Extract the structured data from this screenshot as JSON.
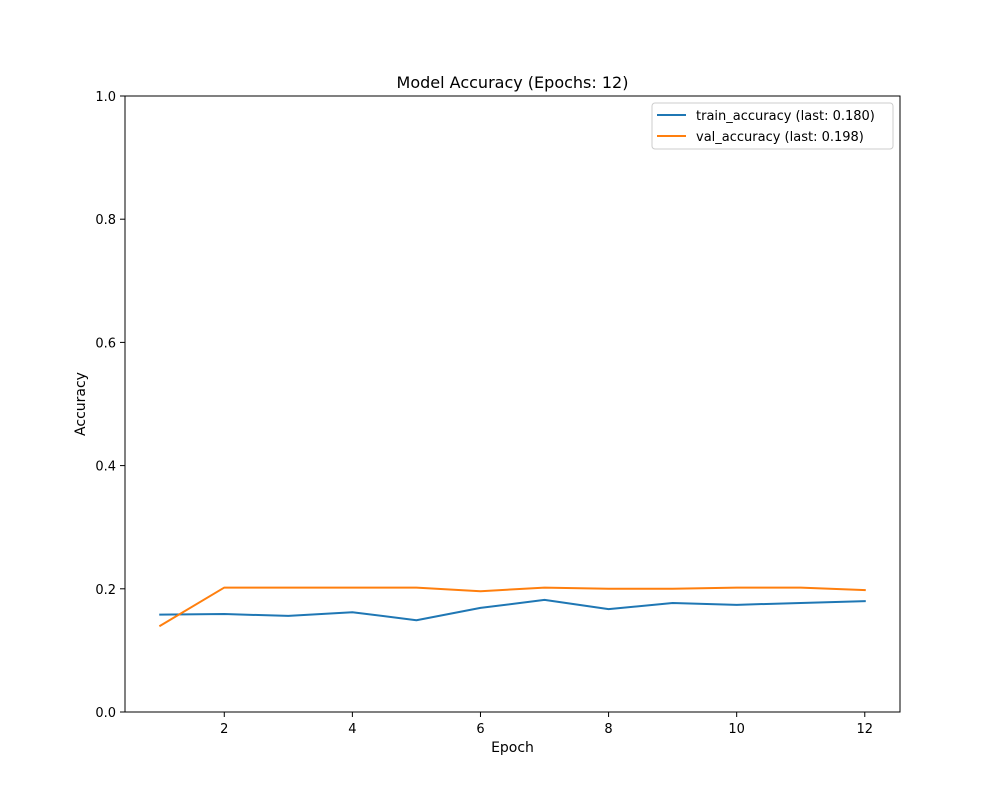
{
  "chart_data": {
    "type": "line",
    "title": "Model Accuracy (Epochs: 12)",
    "xlabel": "Epoch",
    "ylabel": "Accuracy",
    "xlim": [
      0.45,
      12.55
    ],
    "ylim": [
      0.0,
      1.0
    ],
    "xticks": [
      2,
      4,
      6,
      8,
      10,
      12
    ],
    "yticks": [
      0.0,
      0.2,
      0.4,
      0.6,
      0.8,
      1.0
    ],
    "xtick_labels": [
      "2",
      "4",
      "6",
      "8",
      "10",
      "12"
    ],
    "ytick_labels": [
      "0.0",
      "0.2",
      "0.4",
      "0.6",
      "0.8",
      "1.0"
    ],
    "grid": false,
    "legend_position": "top-right",
    "x": [
      1,
      2,
      3,
      4,
      5,
      6,
      7,
      8,
      9,
      10,
      11,
      12
    ],
    "series": [
      {
        "name": "train_accuracy (last: 0.180)",
        "color": "#1f77b4",
        "values": [
          0.158,
          0.159,
          0.156,
          0.162,
          0.149,
          0.169,
          0.182,
          0.167,
          0.177,
          0.174,
          0.177,
          0.18
        ]
      },
      {
        "name": "val_accuracy (last: 0.198)",
        "color": "#ff7f0e",
        "values": [
          0.14,
          0.202,
          0.202,
          0.202,
          0.202,
          0.196,
          0.202,
          0.2,
          0.2,
          0.202,
          0.202,
          0.198
        ]
      }
    ]
  }
}
